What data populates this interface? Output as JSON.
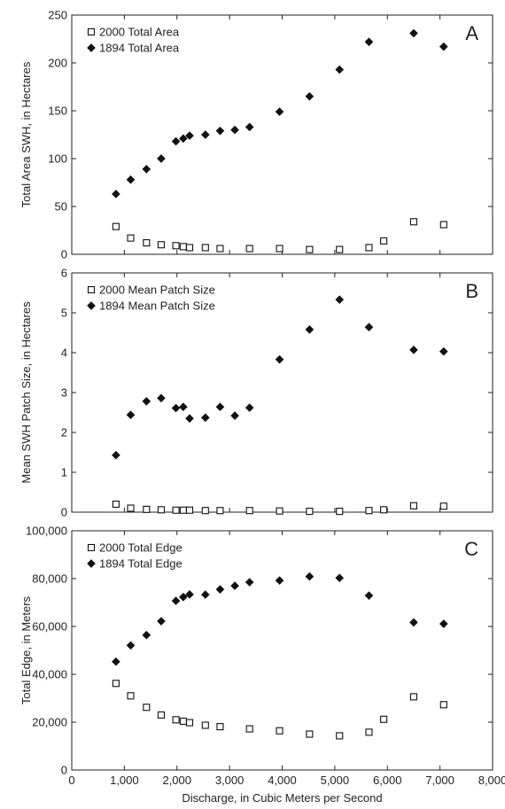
{
  "chart_data": [
    {
      "type": "scatter",
      "panel_letter": "A",
      "ylabel": "Total Area SWH, in Hectares",
      "xlabel": "",
      "xlim": [
        0,
        8000
      ],
      "ylim": [
        0,
        250
      ],
      "yticks": [
        "0",
        "50",
        "100",
        "150",
        "200",
        "250"
      ],
      "legend_position": "top-left",
      "series": [
        {
          "name": "2000 Total Area",
          "marker": "open-square",
          "x": [
            840,
            1120,
            1420,
            1700,
            1980,
            2120,
            2240,
            2540,
            2820,
            3380,
            3950,
            4520,
            5090,
            5650,
            5930,
            6500,
            7070
          ],
          "y": [
            29,
            17,
            12,
            10,
            9,
            8,
            7,
            7,
            6,
            6,
            6,
            5,
            5,
            7,
            14,
            34,
            31
          ]
        },
        {
          "name": "1894 Total Area",
          "marker": "filled-diamond",
          "x": [
            840,
            1120,
            1420,
            1700,
            1980,
            2120,
            2240,
            2540,
            2820,
            3100,
            3380,
            3950,
            4520,
            5090,
            5650,
            6500,
            7070
          ],
          "y": [
            63,
            78,
            89,
            100,
            118,
            121,
            124,
            125,
            129,
            130,
            133,
            149,
            165,
            193,
            222,
            231,
            217
          ]
        }
      ]
    },
    {
      "type": "scatter",
      "panel_letter": "B",
      "ylabel": "Mean SWH Patch Size, in Hectares",
      "xlabel": "",
      "xlim": [
        0,
        8000
      ],
      "ylim": [
        0,
        6
      ],
      "yticks": [
        "0",
        "1",
        "2",
        "3",
        "4",
        "5",
        "6"
      ],
      "legend_position": "top-left",
      "series": [
        {
          "name": "2000 Mean Patch Size",
          "marker": "open-square",
          "x": [
            840,
            1120,
            1420,
            1700,
            1980,
            2120,
            2240,
            2540,
            2820,
            3380,
            3950,
            4520,
            5090,
            5650,
            5930,
            6500,
            7070
          ],
          "y": [
            0.2,
            0.1,
            0.07,
            0.06,
            0.05,
            0.05,
            0.05,
            0.04,
            0.04,
            0.04,
            0.03,
            0.02,
            0.02,
            0.04,
            0.06,
            0.16,
            0.15
          ]
        },
        {
          "name": "1894 Mean Patch Size",
          "marker": "filled-diamond",
          "x": [
            840,
            1120,
            1420,
            1700,
            1980,
            2120,
            2240,
            2540,
            2820,
            3100,
            3380,
            3950,
            4520,
            5090,
            5650,
            6500,
            7070
          ],
          "y": [
            1.43,
            2.44,
            2.78,
            2.86,
            2.61,
            2.64,
            2.35,
            2.37,
            2.64,
            2.42,
            2.62,
            3.83,
            4.58,
            5.33,
            4.64,
            4.07,
            4.03
          ]
        }
      ]
    },
    {
      "type": "scatter",
      "panel_letter": "C",
      "ylabel": "Total Edge, in Meters",
      "xlabel": "Discharge, in Cubic Meters per Second",
      "xlim": [
        0,
        8000
      ],
      "ylim": [
        0,
        100000
      ],
      "xticks": [
        "0",
        "1,000",
        "2,000",
        "3,000",
        "4,000",
        "5,000",
        "6,000",
        "7,000",
        "8,000"
      ],
      "yticks": [
        "0",
        "20,000",
        "40,000",
        "60,000",
        "80,000",
        "100,000"
      ],
      "legend_position": "top-left",
      "series": [
        {
          "name": "2000 Total Edge",
          "marker": "open-square",
          "x": [
            840,
            1120,
            1420,
            1700,
            1980,
            2120,
            2240,
            2540,
            2820,
            3380,
            3950,
            4520,
            5090,
            5650,
            5930,
            6500,
            7070
          ],
          "y": [
            36200,
            31000,
            26200,
            23000,
            21000,
            20400,
            19800,
            18700,
            18100,
            17200,
            16400,
            15000,
            14300,
            15800,
            21200,
            30600,
            27300
          ]
        },
        {
          "name": "1894 Total Edge",
          "marker": "filled-diamond",
          "x": [
            840,
            1120,
            1420,
            1700,
            1980,
            2120,
            2240,
            2540,
            2820,
            3100,
            3380,
            3950,
            4520,
            5090,
            5650,
            6500,
            7070
          ],
          "y": [
            45300,
            52100,
            56400,
            62200,
            70700,
            72300,
            73400,
            73300,
            75500,
            77000,
            78500,
            79200,
            80900,
            80300,
            72900,
            61700,
            61100
          ]
        }
      ]
    }
  ]
}
